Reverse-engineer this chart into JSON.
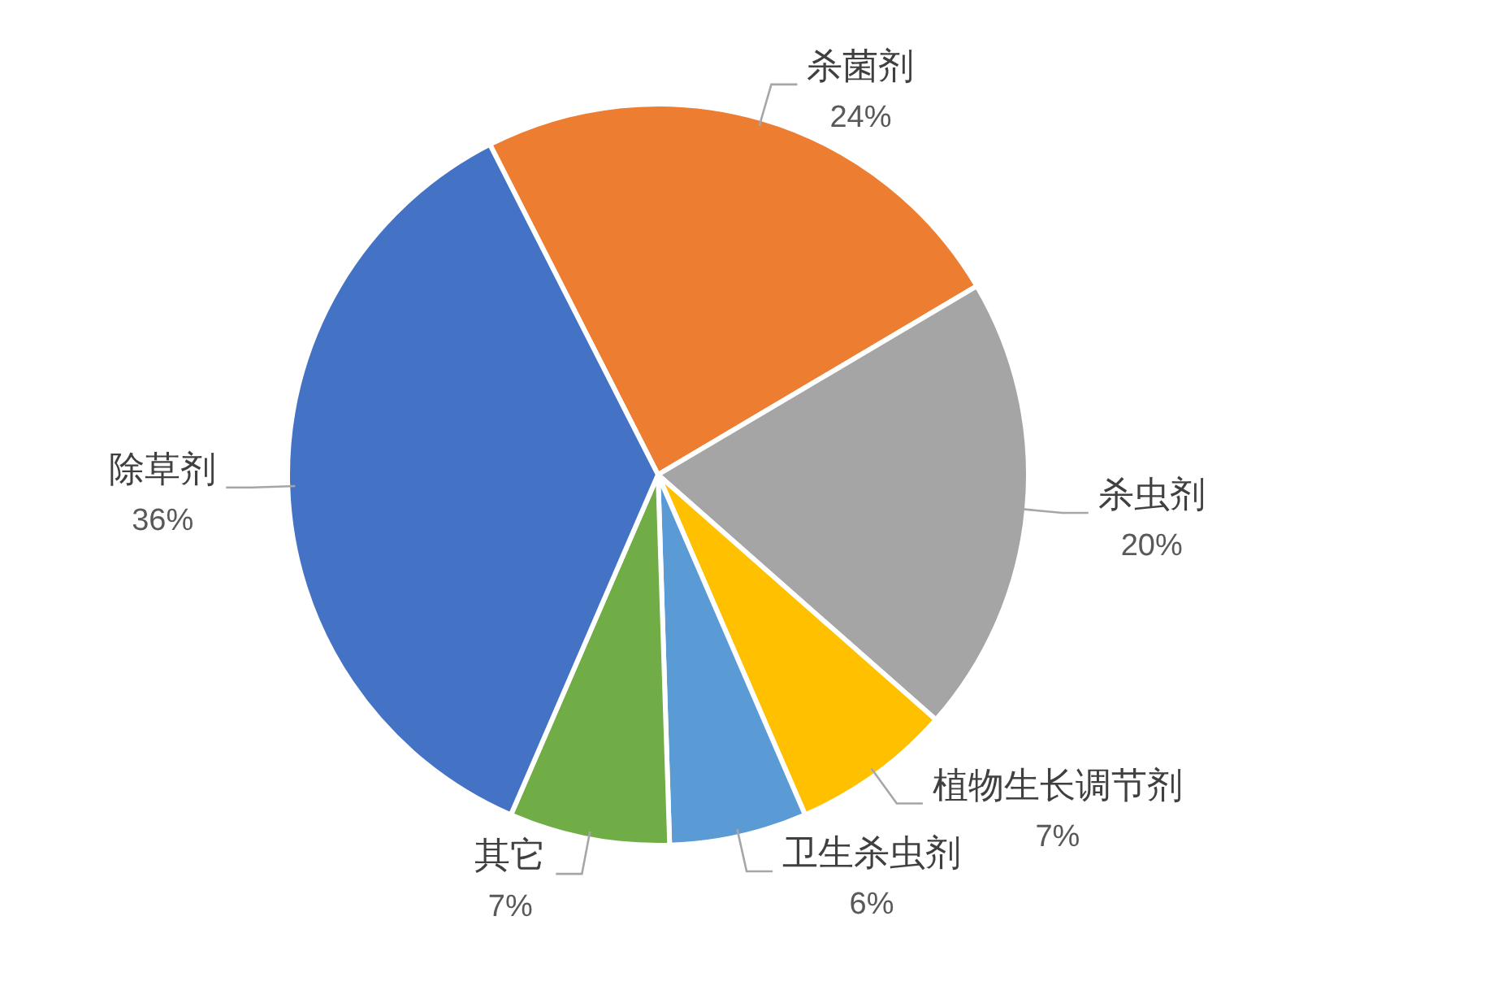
{
  "chart_data": {
    "type": "pie",
    "categories": [
      "杀菌剂",
      "杀虫剂",
      "植物生长调节剂",
      "卫生杀虫剂",
      "其它",
      "除草剂"
    ],
    "values": [
      24,
      20,
      7,
      6,
      7,
      36
    ],
    "value_labels": [
      "24%",
      "20%",
      "7%",
      "6%",
      "7%",
      "36%"
    ],
    "colors": [
      "#ed7d31",
      "#a5a5a5",
      "#ffc000",
      "#5b9bd5",
      "#70ad47",
      "#4472c4"
    ]
  }
}
